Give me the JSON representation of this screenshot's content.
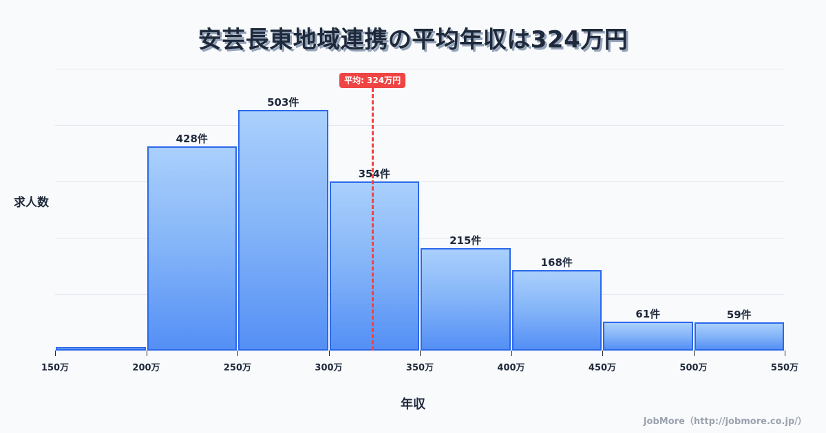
{
  "title": "安芸長東地域連携の平均年収は324万円",
  "chart_data": {
    "type": "bar",
    "subtype": "histogram",
    "title": "安芸長東地域連携の平均年収は324万円",
    "xlabel": "年収",
    "ylabel": "求人数",
    "bin_edges": [
      150,
      200,
      250,
      300,
      350,
      400,
      450,
      500,
      550
    ],
    "x_tick_labels": [
      "150万",
      "200万",
      "250万",
      "300万",
      "350万",
      "400万",
      "450万",
      "500万",
      "550万"
    ],
    "categories": [
      "150-200万",
      "200-250万",
      "250-300万",
      "300-350万",
      "350-400万",
      "400-450万",
      "450-500万",
      "500-550万"
    ],
    "values": [
      7,
      428,
      503,
      354,
      215,
      168,
      61,
      59
    ],
    "value_labels": [
      "",
      "428件",
      "503件",
      "354件",
      "215件",
      "168件",
      "61件",
      "59件"
    ],
    "unit": "件",
    "ylim": [
      0,
      590
    ],
    "grid": true,
    "y_ticks_visible": false,
    "mean": {
      "value": 324,
      "label": "平均: 324万円",
      "color": "#ef4444"
    },
    "bar_color_top": "#a8cffc",
    "bar_color_bottom": "#4f8cf5",
    "bar_border_color": "#2563eb"
  },
  "axis": {
    "xlabel": "年収",
    "ylabel": "求人数"
  },
  "mean_badge": "平均: 324万円",
  "watermark": "JobMore（http://jobmore.co.jp/）"
}
